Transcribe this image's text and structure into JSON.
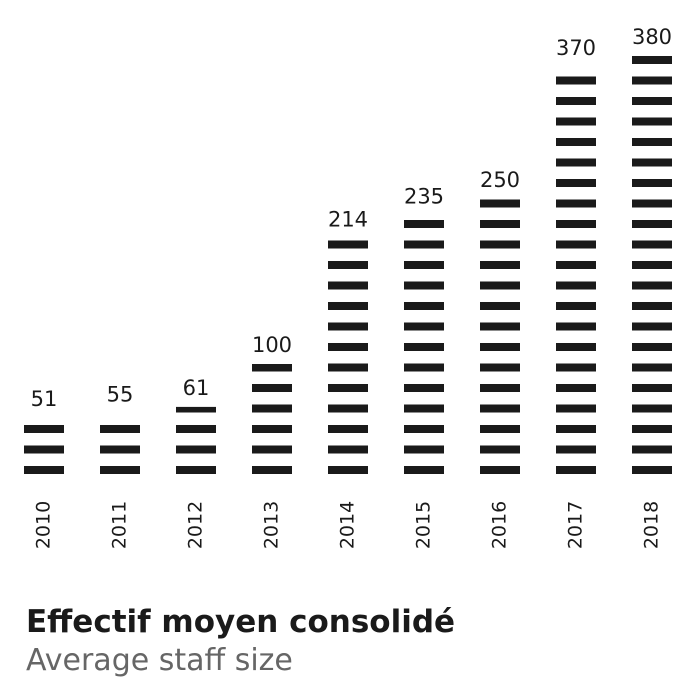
{
  "chart_data": {
    "type": "bar",
    "title": "Effectif moyen consolidé",
    "subtitle": "Average staff size",
    "categories": [
      "2010",
      "2011",
      "2012",
      "2013",
      "2014",
      "2015",
      "2016",
      "2017",
      "2018"
    ],
    "values": [
      51,
      55,
      61,
      100,
      214,
      235,
      250,
      370,
      380
    ],
    "color": "#1a1a1a"
  }
}
